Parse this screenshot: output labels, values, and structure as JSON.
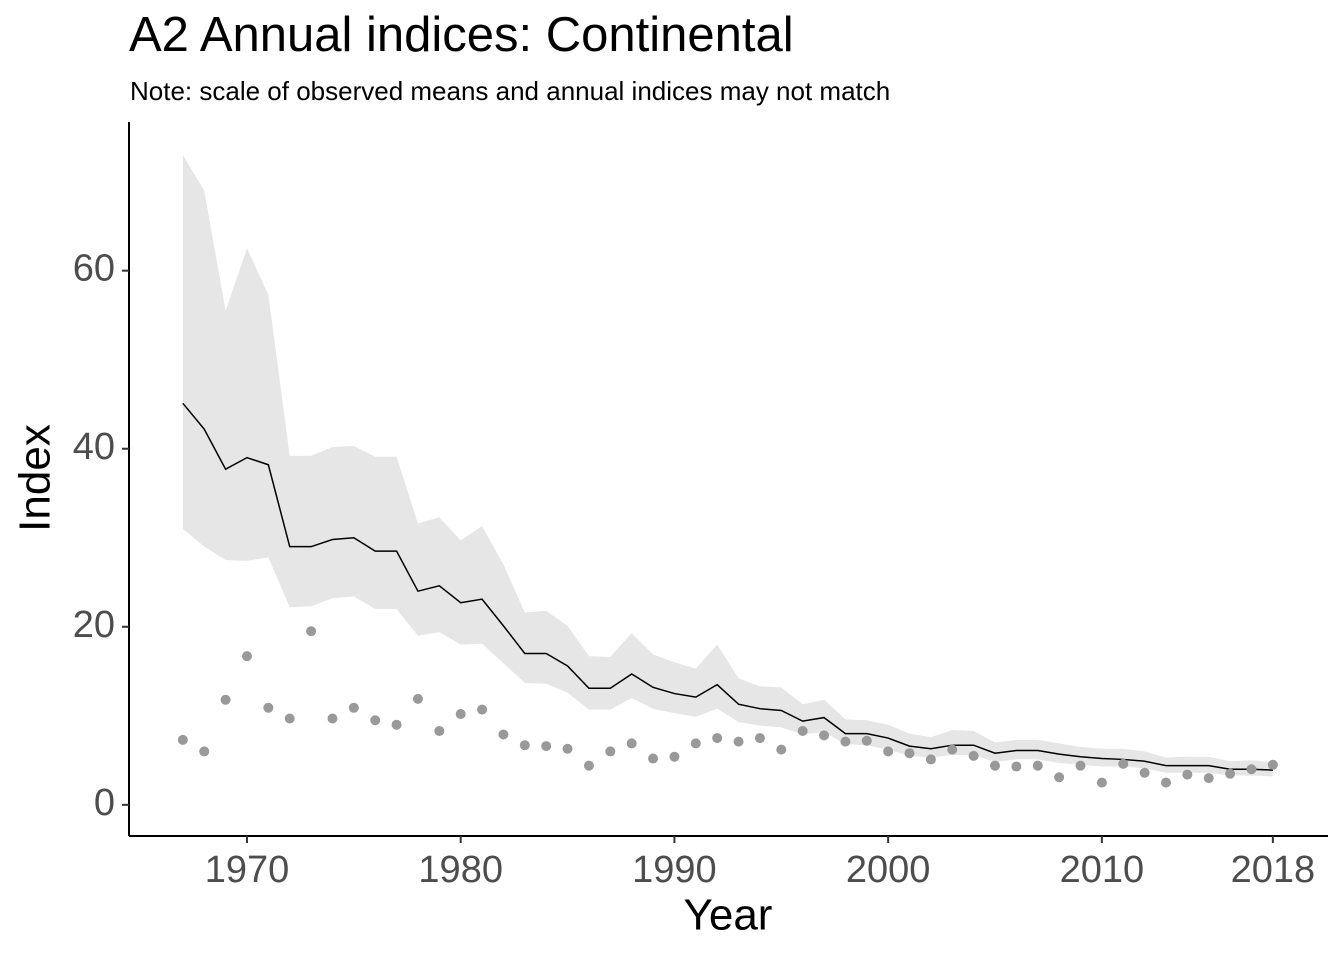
{
  "chart_data": {
    "type": "line",
    "title": "A2 Annual indices: Continental",
    "subtitle": "Note: scale of observed means and annual indices may not match",
    "x_label": "Year",
    "y_label": "Index",
    "x": [
      1967,
      1968,
      1969,
      1970,
      1971,
      1972,
      1973,
      1974,
      1975,
      1976,
      1977,
      1978,
      1979,
      1980,
      1981,
      1982,
      1983,
      1984,
      1985,
      1986,
      1987,
      1988,
      1989,
      1990,
      1991,
      1992,
      1993,
      1994,
      1995,
      1996,
      1997,
      1998,
      1999,
      2000,
      2001,
      2002,
      2003,
      2004,
      2005,
      2006,
      2007,
      2008,
      2009,
      2010,
      2011,
      2012,
      2013,
      2014,
      2015,
      2016,
      2017,
      2018
    ],
    "series": [
      {
        "kind": "band",
        "color": "#e6e6e6",
        "upper": [
          73,
          69,
          55.5,
          62.5,
          57.3,
          39.2,
          39.2,
          40.2,
          40.3,
          39.1,
          39.1,
          31.6,
          32.3,
          29.7,
          31.3,
          27,
          21.6,
          21.8,
          20.1,
          16.7,
          16.6,
          19.3,
          16.9,
          16,
          15.3,
          18,
          14.2,
          13.3,
          13.2,
          11.3,
          11.8,
          9.6,
          9.5,
          9,
          8,
          7.6,
          8.4,
          8.3,
          7,
          7.3,
          7.3,
          6.9,
          6.5,
          6.3,
          6.3,
          6,
          5.3,
          5.4,
          5.4,
          4.9,
          5,
          4.8
        ],
        "lower": [
          31,
          29,
          27.5,
          27.4,
          27.8,
          22.2,
          22.3,
          23.2,
          23.4,
          22,
          22,
          19,
          19.4,
          18,
          18.1,
          15.9,
          13.7,
          13.6,
          12.6,
          10.7,
          10.7,
          12,
          10.8,
          10.3,
          9.9,
          10.8,
          9.3,
          8.9,
          8.7,
          7.9,
          8.2,
          6.8,
          6.7,
          6.2,
          5.5,
          5.3,
          5.6,
          5.6,
          4.8,
          5.1,
          5.1,
          4.7,
          4.5,
          4.3,
          4.3,
          4.1,
          3.6,
          3.6,
          3.6,
          3.3,
          3.3,
          3.2
        ]
      },
      {
        "kind": "line",
        "color": "#000000",
        "values": [
          45.1,
          42.2,
          37.7,
          39,
          38.2,
          29,
          29,
          29.8,
          30,
          28.5,
          28.5,
          24,
          24.6,
          22.7,
          23.1,
          20.1,
          17,
          17,
          15.6,
          13.1,
          13.1,
          14.7,
          13.2,
          12.5,
          12.1,
          13.5,
          11.3,
          10.8,
          10.6,
          9.4,
          9.8,
          8,
          8,
          7.5,
          6.6,
          6.3,
          6.7,
          6.7,
          5.8,
          6.1,
          6.1,
          5.7,
          5.4,
          5.2,
          5.1,
          4.9,
          4.4,
          4.4,
          4.4,
          4,
          4,
          3.9
        ]
      },
      {
        "kind": "points",
        "color": "#999999",
        "values": [
          7.3,
          6,
          11.8,
          16.7,
          10.9,
          9.7,
          19.5,
          9.7,
          10.9,
          9.5,
          9,
          11.9,
          8.3,
          10.2,
          10.7,
          7.9,
          6.7,
          6.6,
          6.3,
          4.4,
          6,
          6.9,
          5.2,
          5.4,
          6.9,
          7.5,
          7.1,
          7.5,
          6.2,
          8.3,
          7.8,
          7.1,
          7.2,
          6,
          5.8,
          5.1,
          6.2,
          5.5,
          4.4,
          4.3,
          4.4,
          3.1,
          4.4,
          2.5,
          4.6,
          3.6,
          2.5,
          3.4,
          3,
          3.5,
          4,
          4.5
        ]
      }
    ],
    "xlim": [
      1964.48,
      2020.58
    ],
    "xticks": [
      1970,
      1980,
      1990,
      2000,
      2010,
      2018
    ],
    "ylim": [
      -3.5,
      76.7
    ],
    "yticks": [
      0,
      20,
      40,
      60
    ],
    "grid": false
  }
}
